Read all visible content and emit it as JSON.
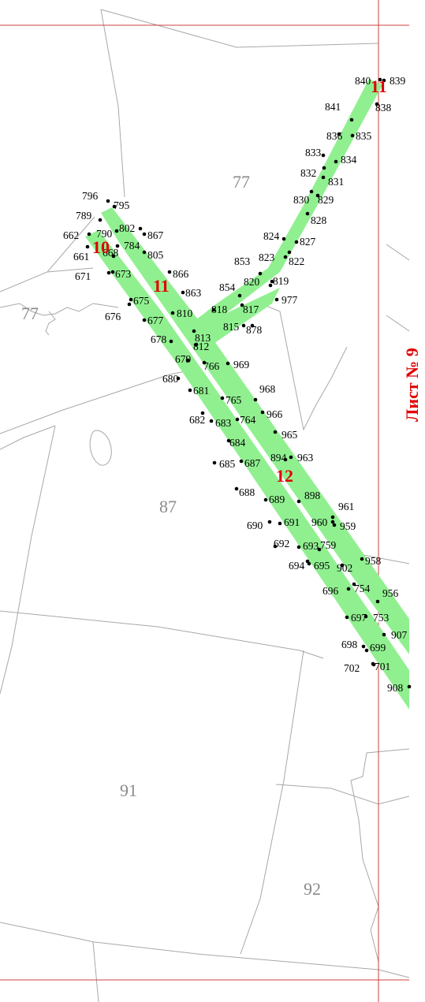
{
  "map": {
    "sheet_label": "Лист № 9",
    "colors": {
      "corridor": "#90f090",
      "frame_line": "#d04040",
      "boundary": "#a8a8a8",
      "point": "#000000",
      "parcel_text": "#8a8a8a",
      "marker_text": "#e00000"
    },
    "parcel_numbers": [
      "77",
      "77",
      "87",
      "91",
      "92"
    ],
    "red_markers": [
      "11",
      "10",
      "11",
      "12"
    ],
    "point_labels": [
      "840",
      "839",
      "841",
      "838",
      "836",
      "835",
      "833",
      "834",
      "832",
      "831",
      "830",
      "829",
      "828",
      "824",
      "827",
      "853",
      "823",
      "822",
      "854",
      "820",
      "819",
      "977",
      "818",
      "817",
      "815",
      "878",
      "796",
      "795",
      "789",
      "802",
      "867",
      "662",
      "790",
      "784",
      "805",
      "10",
      "668",
      "661",
      "671",
      "673",
      "866",
      "863",
      "675",
      "676",
      "677",
      "810",
      "678",
      "813",
      "812",
      "679",
      "766",
      "969",
      "680",
      "681",
      "765",
      "968",
      "966",
      "682",
      "683",
      "764",
      "684",
      "965",
      "685",
      "687",
      "894",
      "963",
      "688",
      "689",
      "898",
      "961",
      "690",
      "691",
      "960",
      "959",
      "692",
      "693",
      "759",
      "694",
      "695",
      "902",
      "958",
      "696",
      "754",
      "956",
      "697",
      "753",
      "907",
      "698",
      "699",
      "702",
      "701",
      "908"
    ]
  }
}
